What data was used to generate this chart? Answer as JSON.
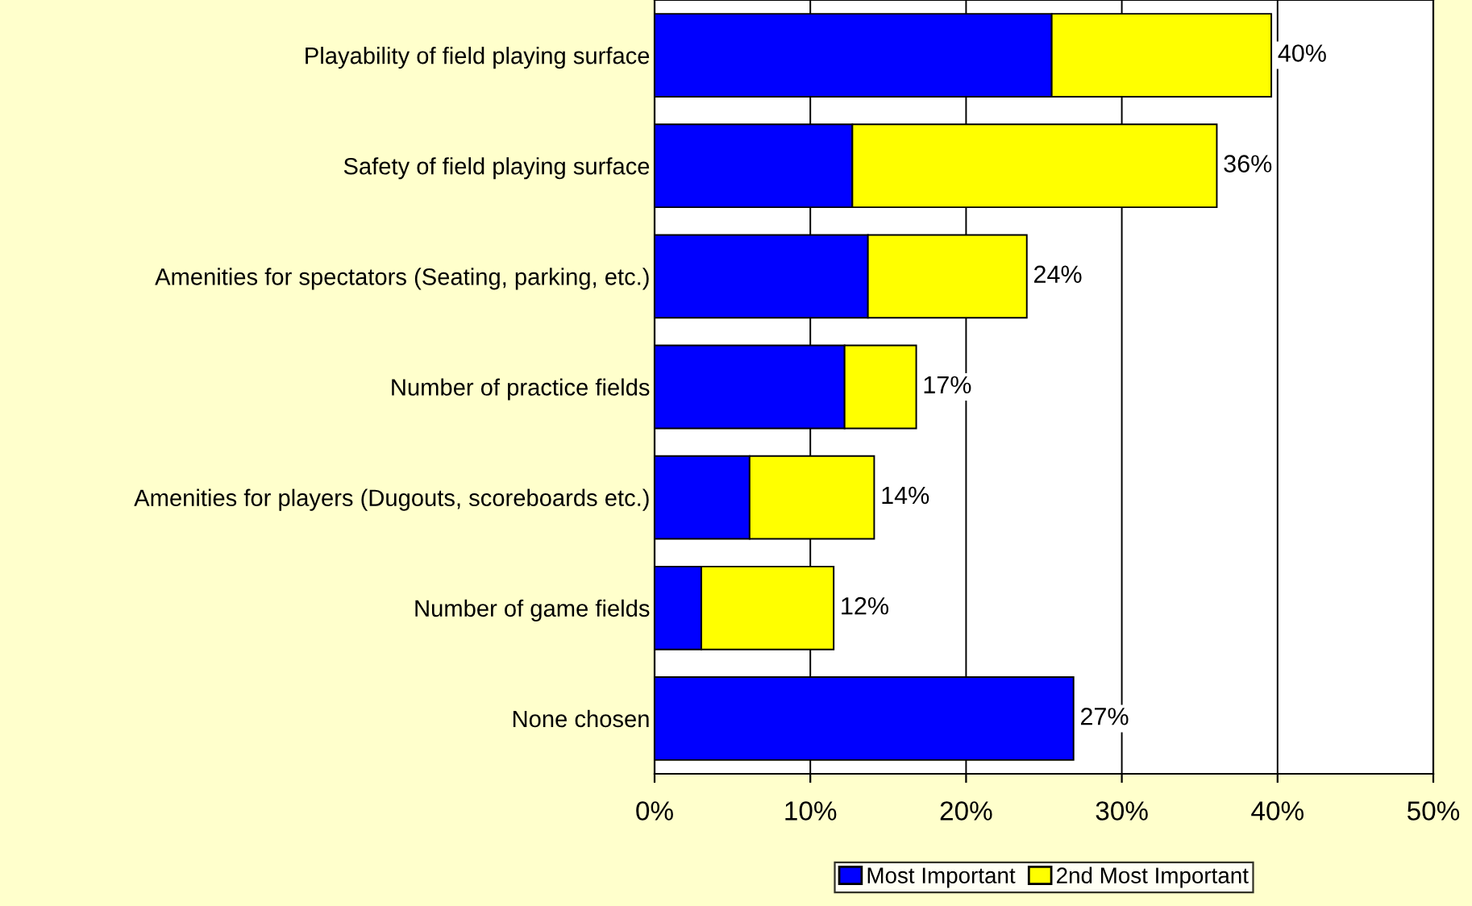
{
  "chart_data": {
    "type": "bar",
    "orientation": "horizontal",
    "stacked": true,
    "categories": [
      "Playability of field playing surface",
      "Safety of field playing surface",
      "Amenities for spectators (Seating, parking, etc.)",
      "Number of practice fields",
      "Amenities for players (Dugouts, scoreboards etc.)",
      "Number of game fields",
      "None chosen"
    ],
    "series": [
      {
        "name": "Most Important",
        "color": "#0000ff",
        "values": [
          25.5,
          12.7,
          13.7,
          12.2,
          6.1,
          3.0,
          26.9
        ]
      },
      {
        "name": "2nd Most Important",
        "color": "#ffff00",
        "values": [
          14.1,
          23.4,
          10.2,
          4.6,
          8.0,
          8.5,
          null
        ]
      }
    ],
    "totals": [
      "40%",
      "36%",
      "24%",
      "17%",
      "14%",
      "12%",
      "27%"
    ],
    "xlim": [
      0,
      50
    ],
    "xticks": [
      {
        "value": 0,
        "label": "0%"
      },
      {
        "value": 10,
        "label": "10%"
      },
      {
        "value": 20,
        "label": "20%"
      },
      {
        "value": 30,
        "label": "30%"
      },
      {
        "value": 40,
        "label": "40%"
      },
      {
        "value": 50,
        "label": "50%"
      }
    ],
    "grid": "x",
    "legend": "bottom"
  }
}
